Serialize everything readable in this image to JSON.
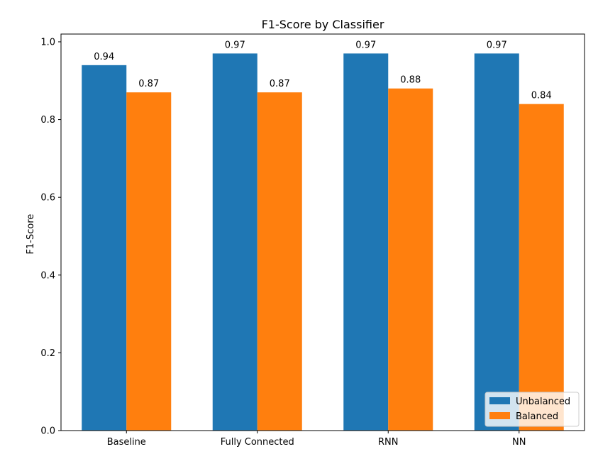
{
  "chart_data": {
    "type": "bar",
    "title": "F1-Score by Classifier",
    "xlabel": "",
    "ylabel": "F1-Score",
    "ylim": [
      0,
      1.02
    ],
    "yticks": [
      "0.0",
      "0.2",
      "0.4",
      "0.6",
      "0.8",
      "1.0"
    ],
    "categories": [
      "Baseline",
      "Fully Connected",
      "RNN",
      "NN"
    ],
    "series": [
      {
        "name": "Unbalanced",
        "color": "#1f77b4",
        "values": [
          0.94,
          0.97,
          0.97,
          0.97
        ],
        "labels": [
          "0.94",
          "0.97",
          "0.97",
          "0.97"
        ]
      },
      {
        "name": "Balanced",
        "color": "#ff7f0e",
        "values": [
          0.87,
          0.87,
          0.88,
          0.84
        ],
        "labels": [
          "0.87",
          "0.87",
          "0.88",
          "0.84"
        ]
      }
    ],
    "grid": false,
    "legend_position": "lower-right"
  }
}
